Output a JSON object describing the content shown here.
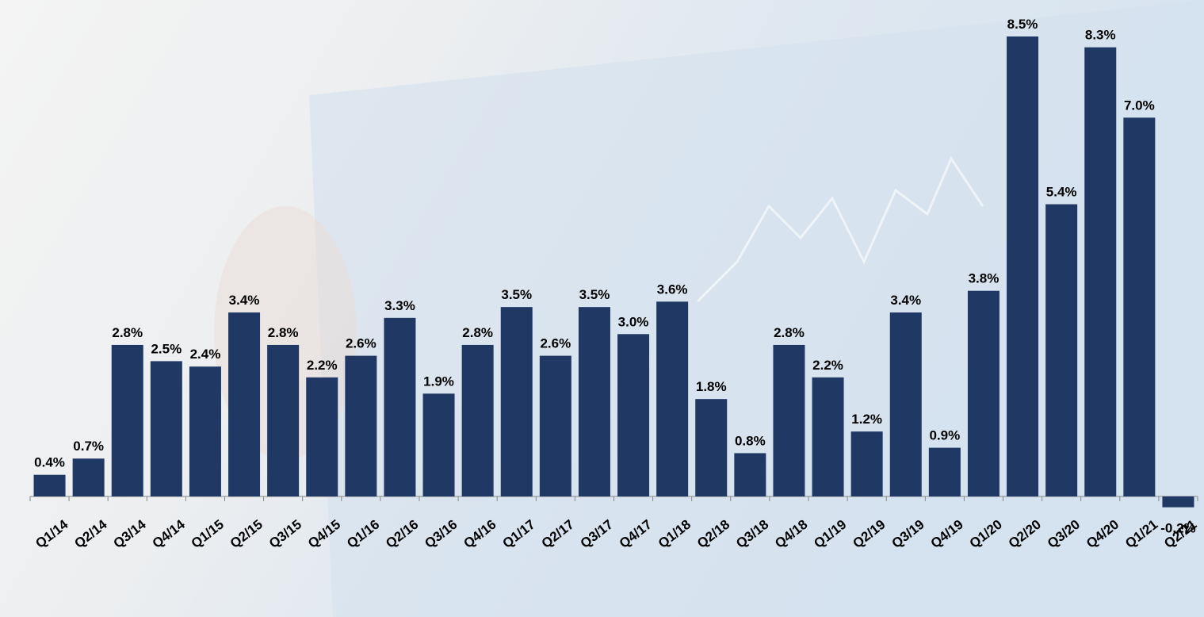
{
  "chart_data": {
    "type": "bar",
    "categories": [
      "Q1/14",
      "Q2/14",
      "Q3/14",
      "Q4/14",
      "Q1/15",
      "Q2/15",
      "Q3/15",
      "Q4/15",
      "Q1/16",
      "Q2/16",
      "Q3/16",
      "Q4/16",
      "Q1/17",
      "Q2/17",
      "Q3/17",
      "Q4/17",
      "Q1/18",
      "Q2/18",
      "Q3/18",
      "Q4/18",
      "Q1/19",
      "Q2/19",
      "Q3/19",
      "Q4/19",
      "Q1/20",
      "Q2/20",
      "Q3/20",
      "Q4/20",
      "Q1/21",
      "Q2/21"
    ],
    "values": [
      0.4,
      0.7,
      2.8,
      2.5,
      2.4,
      3.4,
      2.8,
      2.2,
      2.6,
      3.3,
      1.9,
      2.8,
      3.5,
      2.6,
      3.5,
      3.0,
      3.6,
      1.8,
      0.8,
      2.8,
      2.2,
      1.2,
      3.4,
      0.9,
      3.8,
      8.5,
      5.4,
      8.3,
      7.0,
      -0.2
    ],
    "value_labels": [
      "0.4%",
      "0.7%",
      "2.8%",
      "2.5%",
      "2.4%",
      "3.4%",
      "2.8%",
      "2.2%",
      "2.6%",
      "3.3%",
      "1.9%",
      "2.8%",
      "3.5%",
      "2.6%",
      "3.5%",
      "3.0%",
      "3.6%",
      "1.8%",
      "0.8%",
      "2.8%",
      "2.2%",
      "1.2%",
      "3.4%",
      "0.9%",
      "3.8%",
      "8.5%",
      "5.4%",
      "8.3%",
      "7.0%",
      "-0.2%"
    ],
    "color": "#203864"
  }
}
